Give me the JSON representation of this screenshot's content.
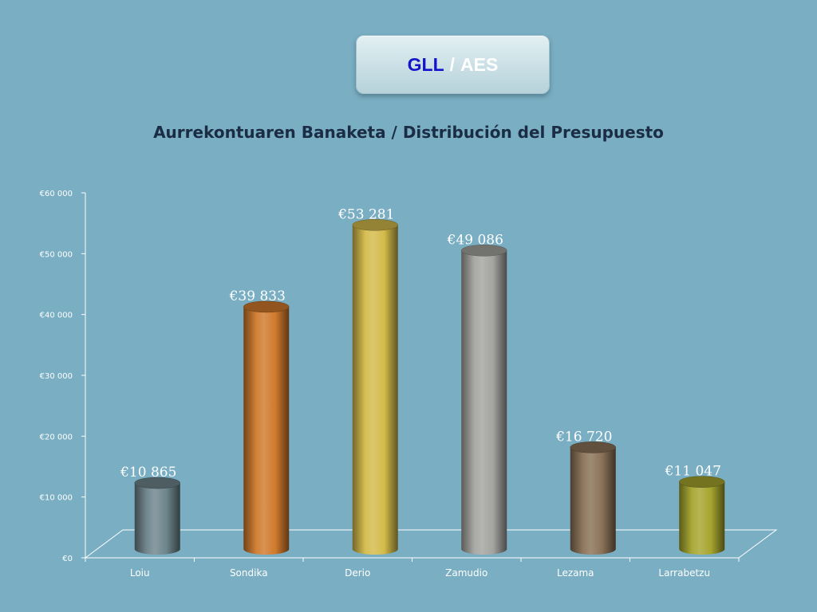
{
  "badge": {
    "left": "GLL",
    "separator": "/",
    "right": "AES"
  },
  "chart_data": {
    "type": "bar",
    "title": "Aurrekontuaren Banaketa / Distribución del Presupuesto",
    "xlabel": "",
    "ylabel": "",
    "categories": [
      "Loiu",
      "Sondika",
      "Derio",
      "Zamudio",
      "Lezama",
      "Larrabetzu"
    ],
    "values": [
      10865,
      39833,
      53281,
      49086,
      16720,
      11047
    ],
    "data_labels": [
      "€10 865",
      "€39 833",
      "€53 281",
      "€49 086",
      "€16 720",
      "€11 047"
    ],
    "ylim": [
      0,
      60000
    ],
    "y_ticks": [
      0,
      10000,
      20000,
      30000,
      40000,
      50000,
      60000
    ],
    "y_tick_labels": [
      "€0",
      "€10 000",
      "€20 000",
      "€30 000",
      "€40 000",
      "€50 000",
      "€60 000"
    ],
    "style": "3d-cylinder",
    "grid": false,
    "legend": "none",
    "colors": [
      "#6e858c",
      "#d07a2c",
      "#d4bb4a",
      "#a3a39f",
      "#8a7257",
      "#a6a52e"
    ],
    "axis_color": "#ffffff"
  }
}
